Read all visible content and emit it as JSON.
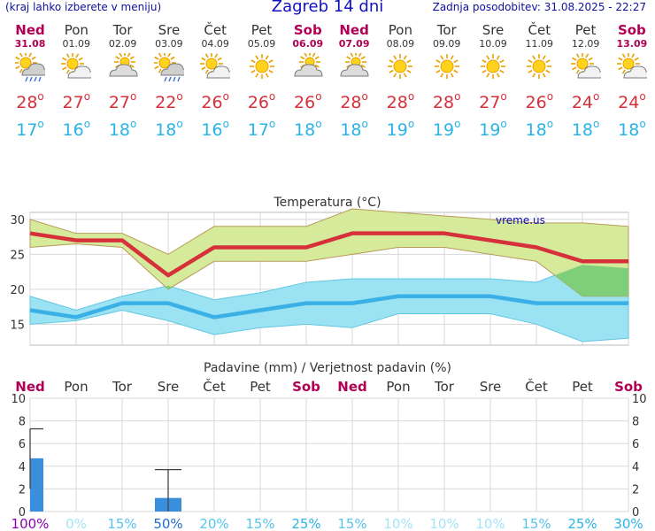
{
  "header": {
    "left": "(kraj lahko izberete v meniju)",
    "title": "Zagreb 14 dni",
    "updated": "Zadnja posodobitev: 31.08.2025 - 22:27"
  },
  "days": [
    {
      "name": "Ned",
      "date": "31.08",
      "weekend": true,
      "icon": "sun-cloud-rain-icon",
      "max": "28",
      "min": "17"
    },
    {
      "name": "Pon",
      "date": "01.09",
      "weekend": false,
      "icon": "sun-cloud-icon",
      "max": "27",
      "min": "16"
    },
    {
      "name": "Tor",
      "date": "02.09",
      "weekend": false,
      "icon": "cloud-sun-icon",
      "max": "27",
      "min": "18"
    },
    {
      "name": "Sre",
      "date": "03.09",
      "weekend": false,
      "icon": "sun-cloud-rain-icon",
      "max": "22",
      "min": "18"
    },
    {
      "name": "Čet",
      "date": "04.09",
      "weekend": false,
      "icon": "sun-cloud-icon",
      "max": "26",
      "min": "16"
    },
    {
      "name": "Pet",
      "date": "05.09",
      "weekend": false,
      "icon": "sun-icon",
      "max": "26",
      "min": "17"
    },
    {
      "name": "Sob",
      "date": "06.09",
      "weekend": true,
      "icon": "cloud-sun-icon",
      "max": "26",
      "min": "18"
    },
    {
      "name": "Ned",
      "date": "07.09",
      "weekend": true,
      "icon": "cloud-sun-icon",
      "max": "28",
      "min": "18"
    },
    {
      "name": "Pon",
      "date": "08.09",
      "weekend": false,
      "icon": "sun-icon",
      "max": "28",
      "min": "19"
    },
    {
      "name": "Tor",
      "date": "09.09",
      "weekend": false,
      "icon": "sun-icon",
      "max": "28",
      "min": "19"
    },
    {
      "name": "Sre",
      "date": "10.09",
      "weekend": false,
      "icon": "sun-icon",
      "max": "27",
      "min": "19"
    },
    {
      "name": "Čet",
      "date": "11.09",
      "weekend": false,
      "icon": "sun-icon",
      "max": "26",
      "min": "18"
    },
    {
      "name": "Pet",
      "date": "12.09",
      "weekend": false,
      "icon": "sun-cloud-icon",
      "max": "24",
      "min": "18"
    },
    {
      "name": "Sob",
      "date": "13.09",
      "weekend": true,
      "icon": "sun-cloud-icon",
      "max": "24",
      "min": "18"
    }
  ],
  "colors": {
    "max": "#d6303a",
    "min": "#2ab3e6",
    "weekend": "#b00055",
    "max_band": "#d5ea9a",
    "max_band_overlap": "#7fcf7a",
    "min_band": "#9be3f2",
    "min_line": "#3ab0e6",
    "rain_bar": "#3a8fdc",
    "prob_100": "#8b00b0",
    "prob_low": "#a3e4f8",
    "prob_mid": "#2ab3e6"
  },
  "chart_data": [
    {
      "type": "line",
      "title": "Temperatura (°C)",
      "watermark": "vreme.us",
      "categories": [
        "31.08",
        "01.09",
        "02.09",
        "03.09",
        "04.09",
        "05.09",
        "06.09",
        "07.09",
        "08.09",
        "09.09",
        "10.09",
        "11.09",
        "12.09",
        "13.09"
      ],
      "ylim": [
        12,
        31
      ],
      "yticks": [
        15,
        20,
        25,
        30
      ],
      "grid": true,
      "series": [
        {
          "role": "max",
          "values": [
            28,
            27,
            27,
            22,
            26,
            26,
            26,
            28,
            28,
            28,
            27,
            26,
            24,
            24
          ]
        },
        {
          "role": "min",
          "values": [
            17,
            16,
            18,
            18,
            16,
            17,
            18,
            18,
            19,
            19,
            19,
            18,
            18,
            18
          ]
        }
      ],
      "bands": [
        {
          "role": "max_range",
          "upper": [
            30,
            28,
            28,
            25,
            29,
            29,
            29,
            31.5,
            31,
            30.5,
            30,
            29.5,
            29.5,
            29
          ],
          "lower": [
            26,
            26.5,
            26,
            20,
            24,
            24,
            24,
            25,
            26,
            26,
            25,
            24,
            19,
            19
          ]
        },
        {
          "role": "min_range",
          "upper": [
            19,
            17,
            19,
            20.5,
            18.5,
            19.5,
            21,
            21.5,
            21.5,
            21.5,
            21.5,
            21,
            23.5,
            23
          ],
          "lower": [
            15,
            15.5,
            17,
            15.5,
            13.5,
            14.5,
            15,
            14.5,
            16.5,
            16.5,
            16.5,
            15,
            12.5,
            13
          ]
        }
      ]
    },
    {
      "type": "bar",
      "title": "Padavine (mm) / Verjetnost padavin (%)",
      "categories": [
        "Ned",
        "Pon",
        "Tor",
        "Sre",
        "Čet",
        "Pet",
        "Sob",
        "Ned",
        "Pon",
        "Tor",
        "Sre",
        "Čet",
        "Pet",
        "Sob"
      ],
      "ylim": [
        0,
        10
      ],
      "yticks": [
        0,
        2,
        4,
        6,
        8,
        10
      ],
      "values": [
        4.7,
        0,
        0,
        1.2,
        0,
        0,
        0,
        0,
        0,
        0,
        0,
        0,
        0,
        0
      ],
      "error_high": [
        7.3,
        null,
        null,
        3.7,
        null,
        null,
        null,
        null,
        null,
        null,
        null,
        null,
        null,
        null
      ],
      "error_low": [
        2.0,
        null,
        null,
        0,
        null,
        null,
        null,
        null,
        null,
        null,
        null,
        null,
        null,
        null
      ],
      "probability": [
        "100%",
        "0%",
        "15%",
        "50%",
        "20%",
        "15%",
        "25%",
        "15%",
        "10%",
        "10%",
        "10%",
        "15%",
        "25%",
        "30%"
      ]
    }
  ]
}
